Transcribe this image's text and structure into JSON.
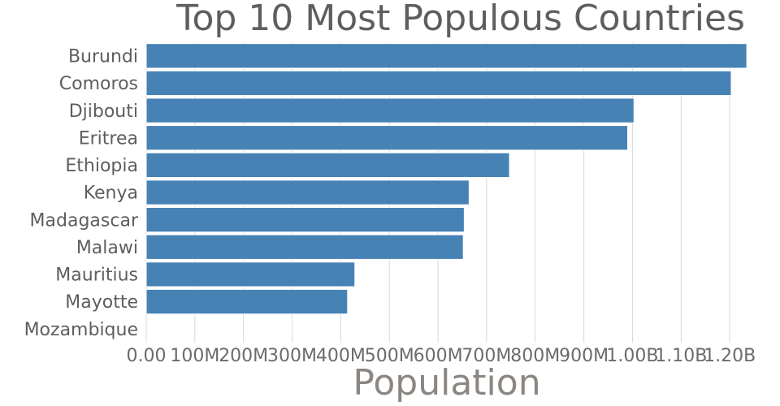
{
  "chart_data": {
    "type": "bar",
    "orientation": "horizontal",
    "title": "Top 10 Most Populous Countries",
    "xlabel": "Population",
    "ylabel": "",
    "categories": [
      "Burundi",
      "Comoros",
      "Djibouti",
      "Eritrea",
      "Ethiopia",
      "Kenya",
      "Madagascar",
      "Malawi",
      "Mauritius",
      "Mayotte",
      "Mozambique"
    ],
    "values": [
      1235000000,
      1203000000,
      1003000000,
      990000000,
      747000000,
      664000000,
      654000000,
      652000000,
      429000000,
      414000000,
      null
    ],
    "xlim": [
      0,
      1300000000
    ],
    "x_ticks": [
      0,
      100000000,
      200000000,
      300000000,
      400000000,
      500000000,
      600000000,
      700000000,
      800000000,
      900000000,
      1000000000,
      1100000000,
      1200000000
    ],
    "x_tick_labels": [
      "0.00",
      "100M",
      "200M",
      "300M",
      "400M",
      "500M",
      "600M",
      "700M",
      "800M",
      "900M",
      "1.00B",
      "1.10B",
      "1.20B"
    ],
    "grid": true,
    "legend": "none",
    "colors": {
      "bar": "#4682b4",
      "grid": "#d9d9d9",
      "title": "#5e5e5e",
      "axis_title": "#8c8681",
      "labels": "#5e5e5e"
    }
  }
}
